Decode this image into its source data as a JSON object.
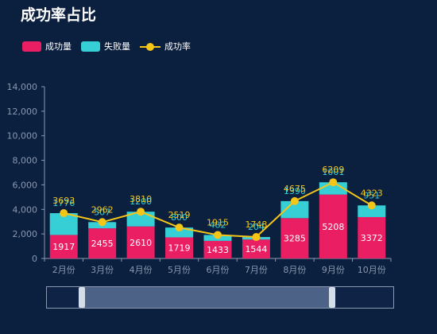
{
  "title": "成功率占比",
  "legend": {
    "success": "成功量",
    "fail": "失败量",
    "rate": "成功率"
  },
  "colors": {
    "success": "#e91e63",
    "fail": "#36cfd6",
    "rate": "#f5c518",
    "axis_text": "#8a99b0",
    "grid": "#8a99b0"
  },
  "chart_data": {
    "type": "bar",
    "stacked": true,
    "categories": [
      "2月份",
      "3月份",
      "4月份",
      "5月份",
      "6月份",
      "7月份",
      "8月份",
      "9月份",
      "10月份"
    ],
    "series": [
      {
        "name": "成功量",
        "type": "bar",
        "values": [
          1917,
          2455,
          2610,
          1719,
          1433,
          1544,
          3285,
          5208,
          3372
        ]
      },
      {
        "name": "失败量",
        "type": "bar",
        "values": [
          1776,
          507,
          1200,
          800,
          482,
          204,
          1390,
          1001,
          951
        ]
      },
      {
        "name": "成功率",
        "type": "line",
        "values": [
          3693,
          2962,
          3810,
          2519,
          1915,
          1748,
          4675,
          6209,
          4323
        ]
      }
    ],
    "y_ticks": [
      "0",
      "2,000",
      "4,000",
      "6,000",
      "8,000",
      "10,000",
      "12,000",
      "14,000"
    ],
    "ylim": [
      0,
      14000
    ],
    "legend_position": "top-left",
    "grid": false
  },
  "zoom_slider": {
    "start": 0.1,
    "end": 0.82
  }
}
